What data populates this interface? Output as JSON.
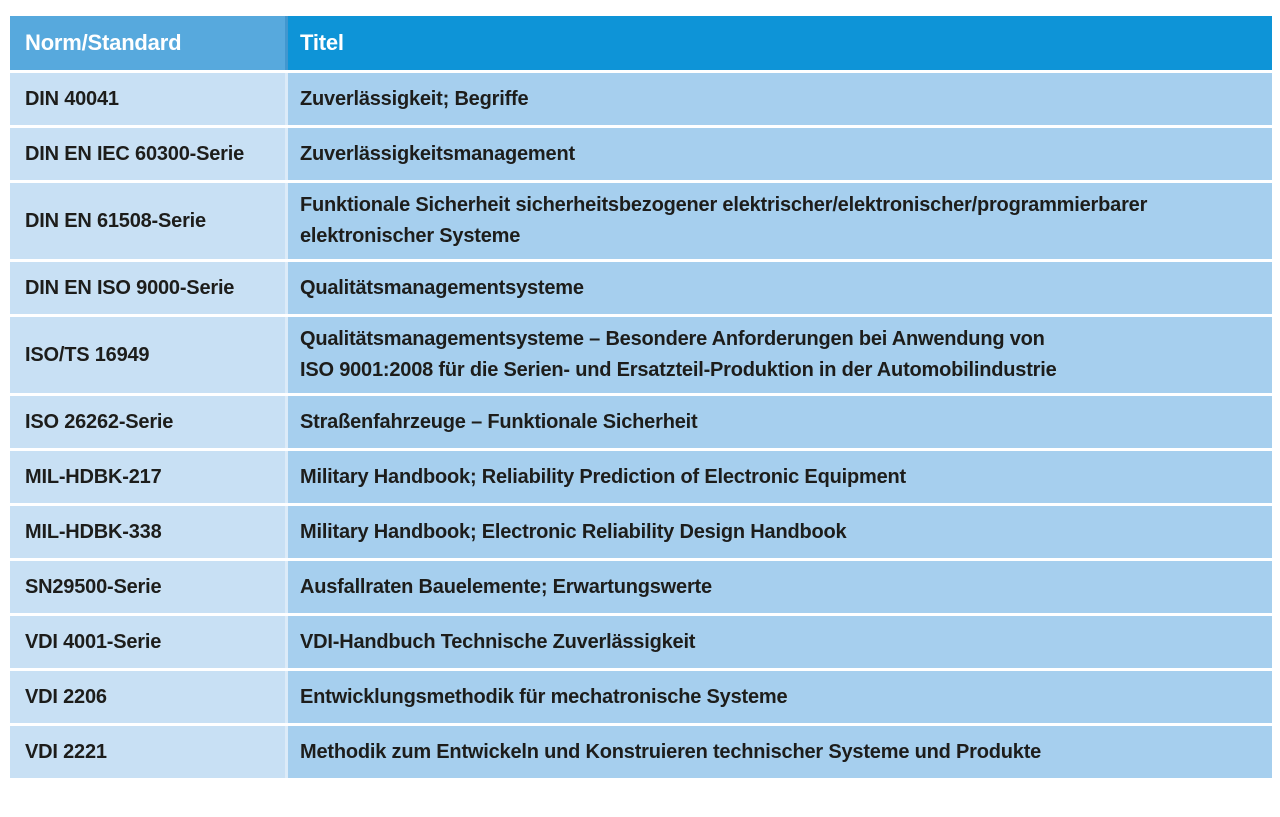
{
  "table": {
    "columns": [
      {
        "label": "Norm/Standard"
      },
      {
        "label": "Titel"
      }
    ],
    "rows": [
      {
        "norm": "DIN 40041",
        "titel": "Zuverlässigkeit; Begriffe"
      },
      {
        "norm": "DIN EN IEC 60300-Serie",
        "titel": "Zuverlässigkeitsmanagement"
      },
      {
        "norm": "DIN EN 61508-Serie",
        "titel": "Funktionale Sicherheit sicherheitsbezogener elektrischer/elektronischer/programmierbarer\nelektronischer Systeme"
      },
      {
        "norm": "DIN EN ISO 9000-Serie",
        "titel": "Qualitätsmanagementsysteme"
      },
      {
        "norm": "ISO/TS 16949",
        "titel": "Qualitätsmanagementsysteme – Besondere Anforderungen bei Anwendung von\nISO 9001:2008 für die Serien- und Ersatzteil-Produktion in der Automobilindustrie"
      },
      {
        "norm": "ISO 26262-Serie",
        "titel": "Straßenfahrzeuge – Funktionale Sicherheit"
      },
      {
        "norm": "MIL-HDBK-217",
        "titel": "Military Handbook; Reliability Prediction of Electronic Equipment"
      },
      {
        "norm": "MIL-HDBK-338",
        "titel": "Military Handbook; Electronic Reliability Design Handbook"
      },
      {
        "norm": "SN29500-Serie",
        "titel": "Ausfallraten Bauelemente; Erwartungswerte"
      },
      {
        "norm": "VDI 4001-Serie",
        "titel": "VDI-Handbuch Technische Zuverlässigkeit"
      },
      {
        "norm": "VDI 2206",
        "titel": "Entwicklungsmethodik für mechatronische Systeme"
      },
      {
        "norm": "VDI 2221",
        "titel": "Methodik zum Entwickeln und Konstruieren technischer Systeme und Produkte"
      }
    ],
    "colors": {
      "header_col1_bg": "#57a9dd",
      "header_col2_bg": "#0e94d7",
      "row_col1_bg": "#c8e0f4",
      "row_col2_bg": "#a6cfee",
      "header_text": "#ffffff",
      "row_text": "#1d1d1b",
      "separator": "#ffffff"
    }
  }
}
